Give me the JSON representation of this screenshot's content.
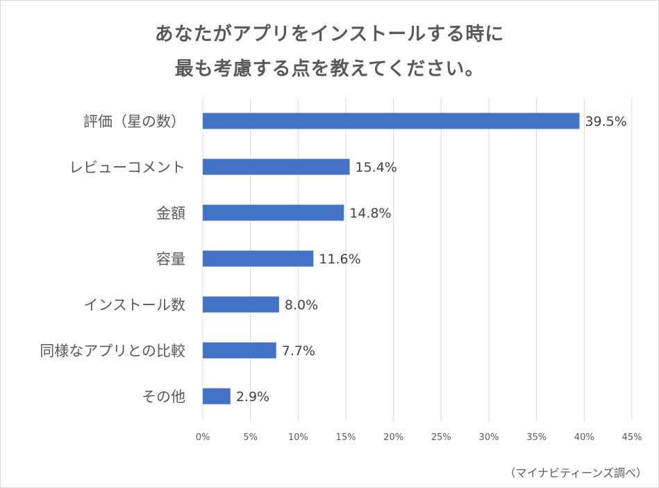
{
  "chart_data": {
    "type": "bar",
    "orientation": "horizontal",
    "title_lines": [
      "あなたがアプリをインストールする時に",
      "最も考慮する点を教えてください。"
    ],
    "categories": [
      "評価（星の数）",
      "レビューコメント",
      "金額",
      "容量",
      "インストール数",
      "同様なアプリとの比較",
      "その他"
    ],
    "values": [
      39.5,
      15.4,
      14.8,
      11.6,
      8.0,
      7.7,
      2.9
    ],
    "value_labels": [
      "39.5%",
      "15.4%",
      "14.8%",
      "11.6%",
      "8.0%",
      "7.7%",
      "2.9%"
    ],
    "x_ticks": [
      "0%",
      "5%",
      "10%",
      "15%",
      "20%",
      "25%",
      "30%",
      "35%",
      "40%",
      "45%"
    ],
    "xlim": [
      0,
      45
    ],
    "grid": "vertical",
    "bar_color": "#4472c4",
    "grid_color": "#d9d9d9"
  },
  "source_note": "（マイナビティーンズ調べ）"
}
